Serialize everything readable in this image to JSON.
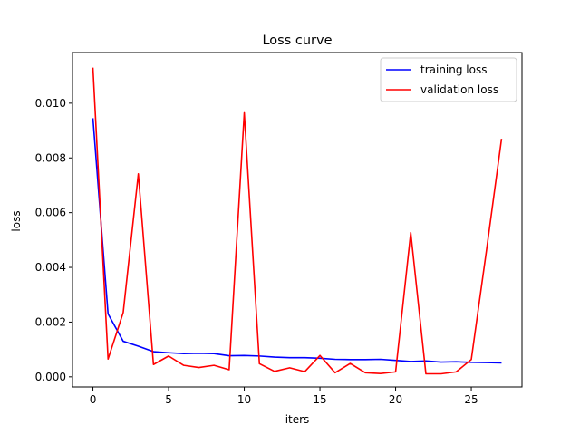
{
  "chart_data": {
    "type": "line",
    "title": "Loss curve",
    "xlabel": "iters",
    "ylabel": "loss",
    "xlim": [
      -1.35,
      28.35
    ],
    "ylim": [
      -0.00037,
      0.01185
    ],
    "xticks": [
      0,
      5,
      10,
      15,
      20,
      25
    ],
    "xtick_labels": [
      "0",
      "5",
      "10",
      "15",
      "20",
      "25"
    ],
    "yticks": [
      0.0,
      0.002,
      0.004,
      0.006,
      0.008,
      0.01
    ],
    "ytick_labels": [
      "0.000",
      "0.002",
      "0.004",
      "0.006",
      "0.008",
      "0.010"
    ],
    "grid": false,
    "legend_position": "top-right",
    "x": [
      0,
      1,
      2,
      3,
      4,
      5,
      6,
      7,
      8,
      9,
      10,
      11,
      12,
      13,
      14,
      15,
      16,
      17,
      18,
      19,
      20,
      21,
      22,
      23,
      24,
      25,
      26,
      27
    ],
    "series": [
      {
        "name": "training loss",
        "color": "#0000ff",
        "values": [
          0.00945,
          0.0023,
          0.0013,
          0.00112,
          0.00092,
          0.00088,
          0.00085,
          0.00086,
          0.00085,
          0.00077,
          0.00078,
          0.00076,
          0.00072,
          0.0007,
          0.0007,
          0.00068,
          0.00064,
          0.00063,
          0.00063,
          0.00064,
          0.0006,
          0.00056,
          0.00058,
          0.00054,
          0.00055,
          0.00053,
          0.00052,
          0.00051
        ]
      },
      {
        "name": "validation loss",
        "color": "#ff0000",
        "values": [
          0.0113,
          0.00065,
          0.00235,
          0.00742,
          0.00045,
          0.00076,
          0.00042,
          0.00034,
          0.00042,
          0.00026,
          0.00965,
          0.00048,
          0.0002,
          0.00033,
          0.00019,
          0.00078,
          0.00015,
          0.00049,
          0.00015,
          0.00012,
          0.00018,
          0.00527,
          0.00011,
          0.00011,
          0.00018,
          0.00063,
          0.0046,
          0.0087
        ]
      }
    ]
  }
}
